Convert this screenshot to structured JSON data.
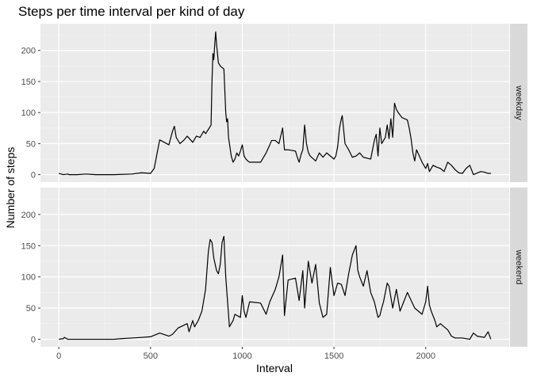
{
  "chart_data": {
    "type": "line",
    "title": "Steps per time interval per kind of day",
    "xlabel": "Interval",
    "ylabel": "Number of steps",
    "xlim": [
      -100,
      2455
    ],
    "ylim": [
      -12,
      243
    ],
    "x_ticks": [
      0,
      500,
      1000,
      1500,
      2000
    ],
    "y_ticks": [
      0,
      50,
      100,
      150,
      200
    ],
    "grid": true,
    "facets": [
      "weekday",
      "weekend"
    ],
    "series": [
      {
        "facet": "weekday",
        "points": [
          [
            0,
            2
          ],
          [
            25,
            0
          ],
          [
            50,
            1
          ],
          [
            55,
            0
          ],
          [
            100,
            0
          ],
          [
            150,
            1
          ],
          [
            200,
            0
          ],
          [
            300,
            0
          ],
          [
            400,
            1
          ],
          [
            450,
            3
          ],
          [
            500,
            2
          ],
          [
            520,
            10
          ],
          [
            550,
            56
          ],
          [
            600,
            48
          ],
          [
            620,
            70
          ],
          [
            630,
            78
          ],
          [
            640,
            60
          ],
          [
            660,
            50
          ],
          [
            680,
            55
          ],
          [
            700,
            62
          ],
          [
            730,
            52
          ],
          [
            750,
            62
          ],
          [
            770,
            60
          ],
          [
            790,
            70
          ],
          [
            800,
            66
          ],
          [
            820,
            75
          ],
          [
            830,
            80
          ],
          [
            835,
            150
          ],
          [
            840,
            195
          ],
          [
            845,
            185
          ],
          [
            850,
            210
          ],
          [
            855,
            230
          ],
          [
            860,
            210
          ],
          [
            870,
            180
          ],
          [
            880,
            175
          ],
          [
            900,
            170
          ],
          [
            910,
            100
          ],
          [
            915,
            85
          ],
          [
            920,
            90
          ],
          [
            925,
            60
          ],
          [
            935,
            40
          ],
          [
            940,
            30
          ],
          [
            950,
            20
          ],
          [
            960,
            25
          ],
          [
            970,
            35
          ],
          [
            980,
            30
          ],
          [
            990,
            38
          ],
          [
            1000,
            48
          ],
          [
            1010,
            30
          ],
          [
            1020,
            25
          ],
          [
            1030,
            22
          ],
          [
            1040,
            20
          ],
          [
            1100,
            20
          ],
          [
            1120,
            30
          ],
          [
            1130,
            35
          ],
          [
            1150,
            48
          ],
          [
            1160,
            55
          ],
          [
            1180,
            55
          ],
          [
            1200,
            50
          ],
          [
            1220,
            75
          ],
          [
            1230,
            40
          ],
          [
            1250,
            40
          ],
          [
            1290,
            38
          ],
          [
            1300,
            28
          ],
          [
            1310,
            20
          ],
          [
            1320,
            32
          ],
          [
            1330,
            40
          ],
          [
            1340,
            80
          ],
          [
            1350,
            50
          ],
          [
            1360,
            36
          ],
          [
            1370,
            30
          ],
          [
            1400,
            22
          ],
          [
            1420,
            35
          ],
          [
            1440,
            28
          ],
          [
            1460,
            35
          ],
          [
            1500,
            25
          ],
          [
            1510,
            30
          ],
          [
            1520,
            45
          ],
          [
            1530,
            75
          ],
          [
            1540,
            90
          ],
          [
            1545,
            95
          ],
          [
            1560,
            50
          ],
          [
            1580,
            40
          ],
          [
            1600,
            28
          ],
          [
            1620,
            30
          ],
          [
            1640,
            35
          ],
          [
            1660,
            28
          ],
          [
            1700,
            25
          ],
          [
            1710,
            40
          ],
          [
            1720,
            55
          ],
          [
            1730,
            65
          ],
          [
            1740,
            30
          ],
          [
            1750,
            75
          ],
          [
            1760,
            50
          ],
          [
            1780,
            60
          ],
          [
            1790,
            80
          ],
          [
            1800,
            58
          ],
          [
            1810,
            90
          ],
          [
            1820,
            60
          ],
          [
            1830,
            115
          ],
          [
            1840,
            105
          ],
          [
            1850,
            100
          ],
          [
            1870,
            92
          ],
          [
            1900,
            88
          ],
          [
            1910,
            75
          ],
          [
            1920,
            58
          ],
          [
            1930,
            35
          ],
          [
            1940,
            22
          ],
          [
            1950,
            40
          ],
          [
            1980,
            20
          ],
          [
            2000,
            10
          ],
          [
            2010,
            18
          ],
          [
            2020,
            5
          ],
          [
            2040,
            15
          ],
          [
            2060,
            12
          ],
          [
            2080,
            10
          ],
          [
            2100,
            5
          ],
          [
            2120,
            20
          ],
          [
            2140,
            15
          ],
          [
            2160,
            8
          ],
          [
            2180,
            3
          ],
          [
            2200,
            2
          ],
          [
            2220,
            10
          ],
          [
            2240,
            15
          ],
          [
            2260,
            0
          ],
          [
            2300,
            5
          ],
          [
            2320,
            4
          ],
          [
            2340,
            2
          ],
          [
            2355,
            2
          ]
        ]
      },
      {
        "facet": "weekend",
        "points": [
          [
            0,
            0
          ],
          [
            25,
            1
          ],
          [
            30,
            3
          ],
          [
            50,
            0
          ],
          [
            100,
            0
          ],
          [
            200,
            0
          ],
          [
            300,
            0
          ],
          [
            340,
            1
          ],
          [
            400,
            2
          ],
          [
            450,
            3
          ],
          [
            500,
            4
          ],
          [
            550,
            10
          ],
          [
            600,
            5
          ],
          [
            620,
            8
          ],
          [
            650,
            18
          ],
          [
            700,
            25
          ],
          [
            710,
            12
          ],
          [
            730,
            30
          ],
          [
            740,
            20
          ],
          [
            760,
            30
          ],
          [
            780,
            45
          ],
          [
            800,
            80
          ],
          [
            815,
            140
          ],
          [
            825,
            160
          ],
          [
            835,
            155
          ],
          [
            845,
            130
          ],
          [
            860,
            110
          ],
          [
            870,
            105
          ],
          [
            880,
            120
          ],
          [
            890,
            155
          ],
          [
            900,
            165
          ],
          [
            910,
            100
          ],
          [
            920,
            60
          ],
          [
            930,
            20
          ],
          [
            940,
            25
          ],
          [
            950,
            30
          ],
          [
            960,
            40
          ],
          [
            990,
            35
          ],
          [
            1000,
            70
          ],
          [
            1010,
            45
          ],
          [
            1020,
            35
          ],
          [
            1040,
            60
          ],
          [
            1100,
            58
          ],
          [
            1130,
            40
          ],
          [
            1150,
            60
          ],
          [
            1180,
            80
          ],
          [
            1200,
            100
          ],
          [
            1220,
            135
          ],
          [
            1230,
            38
          ],
          [
            1250,
            95
          ],
          [
            1290,
            98
          ],
          [
            1300,
            80
          ],
          [
            1310,
            62
          ],
          [
            1330,
            110
          ],
          [
            1340,
            50
          ],
          [
            1360,
            125
          ],
          [
            1380,
            90
          ],
          [
            1400,
            120
          ],
          [
            1420,
            58
          ],
          [
            1440,
            35
          ],
          [
            1460,
            40
          ],
          [
            1480,
            115
          ],
          [
            1500,
            70
          ],
          [
            1520,
            90
          ],
          [
            1540,
            88
          ],
          [
            1560,
            70
          ],
          [
            1580,
            105
          ],
          [
            1600,
            135
          ],
          [
            1620,
            150
          ],
          [
            1630,
            110
          ],
          [
            1640,
            100
          ],
          [
            1660,
            85
          ],
          [
            1680,
            110
          ],
          [
            1700,
            75
          ],
          [
            1720,
            60
          ],
          [
            1740,
            35
          ],
          [
            1750,
            38
          ],
          [
            1760,
            50
          ],
          [
            1770,
            60
          ],
          [
            1790,
            90
          ],
          [
            1800,
            85
          ],
          [
            1820,
            50
          ],
          [
            1840,
            80
          ],
          [
            1860,
            45
          ],
          [
            1880,
            60
          ],
          [
            1900,
            75
          ],
          [
            1940,
            50
          ],
          [
            1980,
            40
          ],
          [
            2000,
            60
          ],
          [
            2010,
            85
          ],
          [
            2020,
            55
          ],
          [
            2030,
            45
          ],
          [
            2050,
            30
          ],
          [
            2060,
            20
          ],
          [
            2080,
            25
          ],
          [
            2100,
            20
          ],
          [
            2120,
            15
          ],
          [
            2140,
            5
          ],
          [
            2160,
            2
          ],
          [
            2200,
            2
          ],
          [
            2240,
            0
          ],
          [
            2260,
            10
          ],
          [
            2280,
            5
          ],
          [
            2320,
            3
          ],
          [
            2340,
            12
          ],
          [
            2355,
            0
          ]
        ]
      }
    ]
  }
}
